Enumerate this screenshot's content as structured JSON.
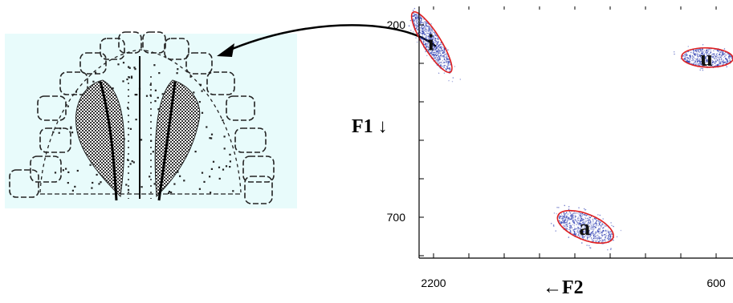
{
  "colors": {
    "palate_bg": "#e8fbfb",
    "palate_ink": "#222222",
    "tongue_contact": "#333333",
    "cloud": "#2b3bb0",
    "ellipse": "#e02020",
    "axis": "#000000"
  },
  "icons": {
    "arrow": "curved-arrow-icon"
  },
  "chart_data": {
    "type": "scatter",
    "title": "",
    "xlabel": "←F2",
    "ylabel": "F1 ↓",
    "xlim": [
      2300,
      570
    ],
    "ylim": [
      850,
      140
    ],
    "x_ticks": [
      {
        "value": 2200,
        "label": "2200"
      },
      {
        "value": 600,
        "label": "600"
      }
    ],
    "y_ticks": [
      {
        "value": 200,
        "label": "200"
      },
      {
        "value": 700,
        "label": "700"
      }
    ],
    "series": [
      {
        "label": "i",
        "center": {
          "f2": 2210,
          "f1": 245
        },
        "spread_f2": 95,
        "spread_f1": 90
      },
      {
        "label": "u",
        "center": {
          "f2": 650,
          "f1": 285
        },
        "spread_f2": 140,
        "spread_f1": 22
      },
      {
        "label": "a",
        "center": {
          "f2": 1340,
          "f1": 725
        },
        "spread_f2": 165,
        "spread_f1": 42
      }
    ]
  }
}
